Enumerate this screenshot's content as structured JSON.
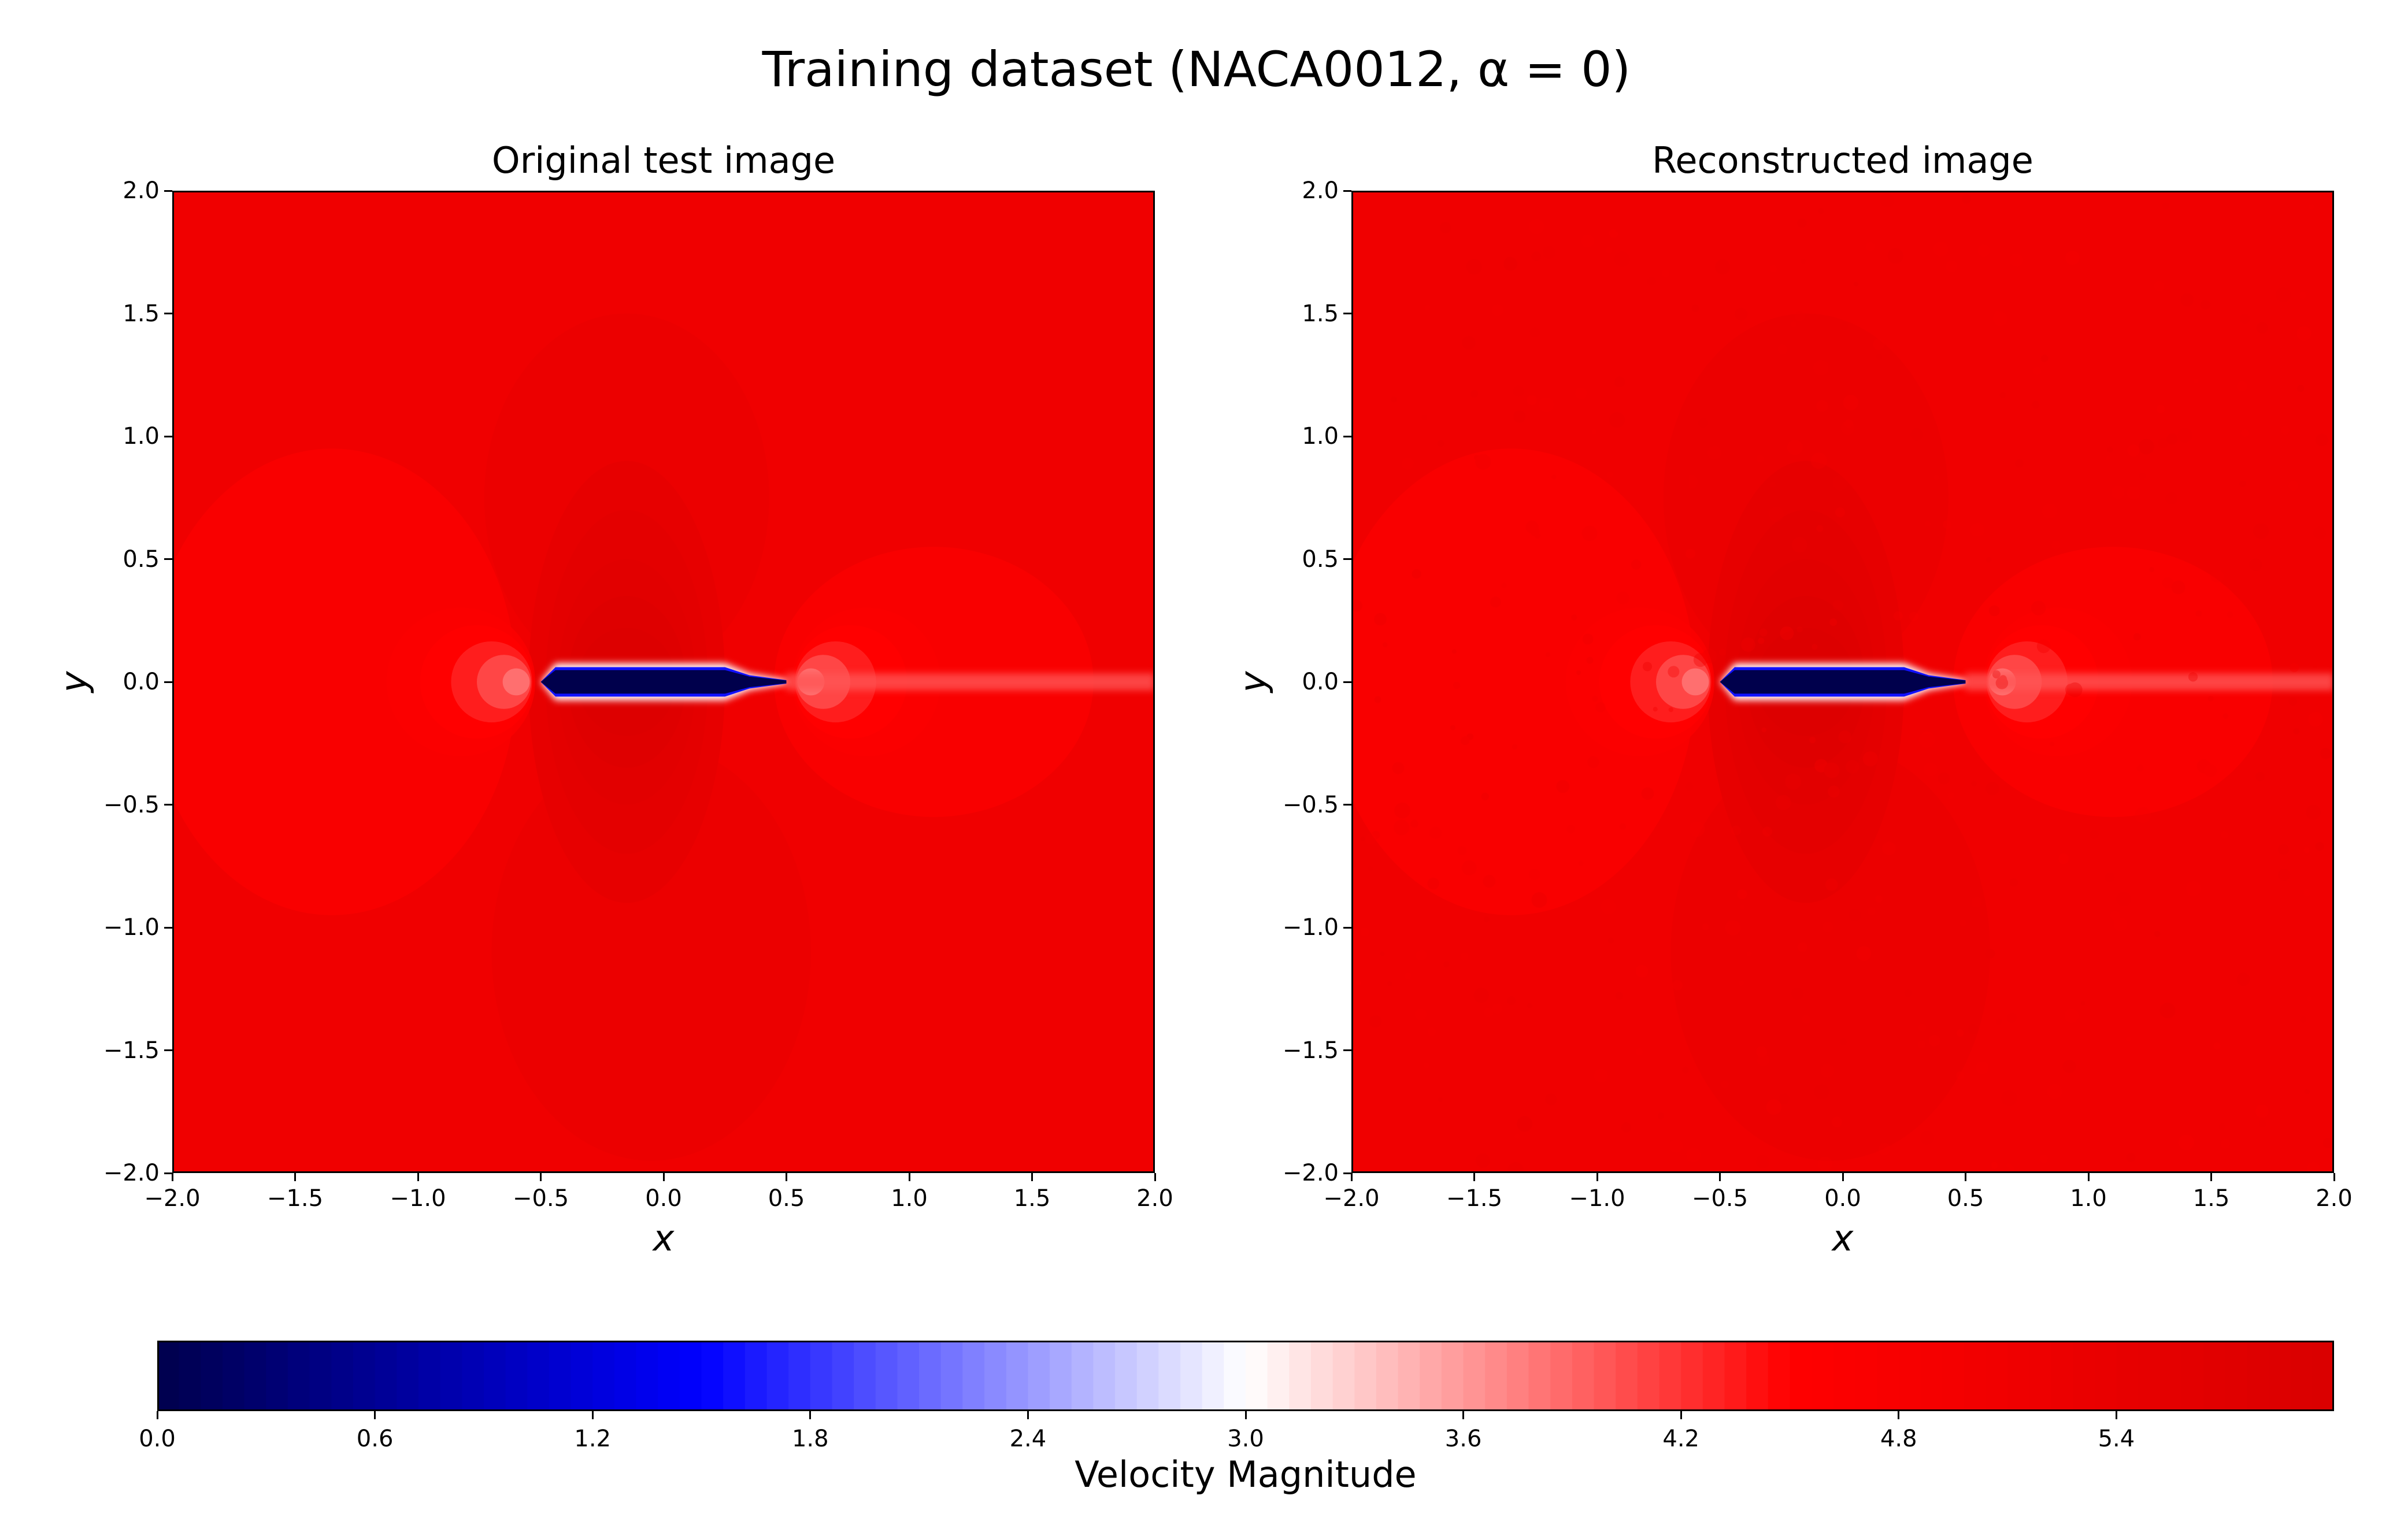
{
  "chart_data": {
    "type": "heatmap",
    "title": "Training dataset (NACA0012, α = 0)",
    "colormap": {
      "name": "seismic",
      "stops": [
        "#00004c",
        "#0000ff",
        "#ffffff",
        "#ff0000",
        "#d90000"
      ]
    },
    "panels": [
      {
        "title": "Original test image",
        "xlabel": "x",
        "ylabel": "y",
        "xlim": [
          -2.0,
          2.0
        ],
        "ylim": [
          -2.0,
          2.0
        ],
        "xticks": [
          "−2.0",
          "−1.5",
          "−1.0",
          "−0.5",
          "0.0",
          "0.5",
          "1.0",
          "1.5",
          "2.0"
        ],
        "yticks": [
          "−2.0",
          "−1.5",
          "−1.0",
          "−0.5",
          "0.0",
          "0.5",
          "1.0",
          "1.5",
          "2.0"
        ],
        "background_value": 5.1,
        "airfoil": {
          "leading_edge_x": -0.5,
          "trailing_edge_x": 0.5,
          "y": 0.0,
          "min_value": 0.0
        },
        "stagnation_points": [
          {
            "x": -0.55,
            "y": 0.0,
            "value": 3.7
          },
          {
            "x": 0.55,
            "y": 0.0,
            "value": 3.9
          }
        ],
        "acceleration_region": {
          "x": -0.15,
          "y": 0.0,
          "value": 5.8
        },
        "wake": {
          "x_start": 0.5,
          "x_end": 2.0,
          "y": 0.0,
          "value": 4.0
        }
      },
      {
        "title": "Reconstructed image",
        "xlabel": "x",
        "ylabel": "y",
        "xlim": [
          -2.0,
          2.0
        ],
        "ylim": [
          -2.0,
          2.0
        ],
        "xticks": [
          "−2.0",
          "−1.5",
          "−1.0",
          "−0.5",
          "0.0",
          "0.5",
          "1.0",
          "1.5",
          "2.0"
        ],
        "yticks": [
          "−2.0",
          "−1.5",
          "−1.0",
          "−0.5",
          "0.0",
          "0.5",
          "1.0",
          "1.5",
          "2.0"
        ],
        "background_value": 5.1,
        "airfoil": {
          "leading_edge_x": -0.5,
          "trailing_edge_x": 0.5,
          "y": 0.0,
          "min_value": 0.0
        },
        "stagnation_points": [
          {
            "x": -0.55,
            "y": 0.0,
            "value": 3.7
          },
          {
            "x": 0.6,
            "y": 0.0,
            "value": 3.9
          }
        ],
        "acceleration_region": {
          "x": -0.15,
          "y": 0.0,
          "value": 5.8
        },
        "wake": {
          "x_start": 0.5,
          "x_end": 2.0,
          "y": 0.0,
          "value": 4.0
        },
        "noisy": true
      }
    ],
    "colorbar": {
      "label": "Velocity Magnitude",
      "min": 0.0,
      "max": 6.0,
      "ticks": [
        "0.0",
        "0.6",
        "1.2",
        "1.8",
        "2.4",
        "3.0",
        "3.6",
        "4.2",
        "4.8",
        "5.4"
      ],
      "orientation": "horizontal",
      "levels": 100
    }
  }
}
